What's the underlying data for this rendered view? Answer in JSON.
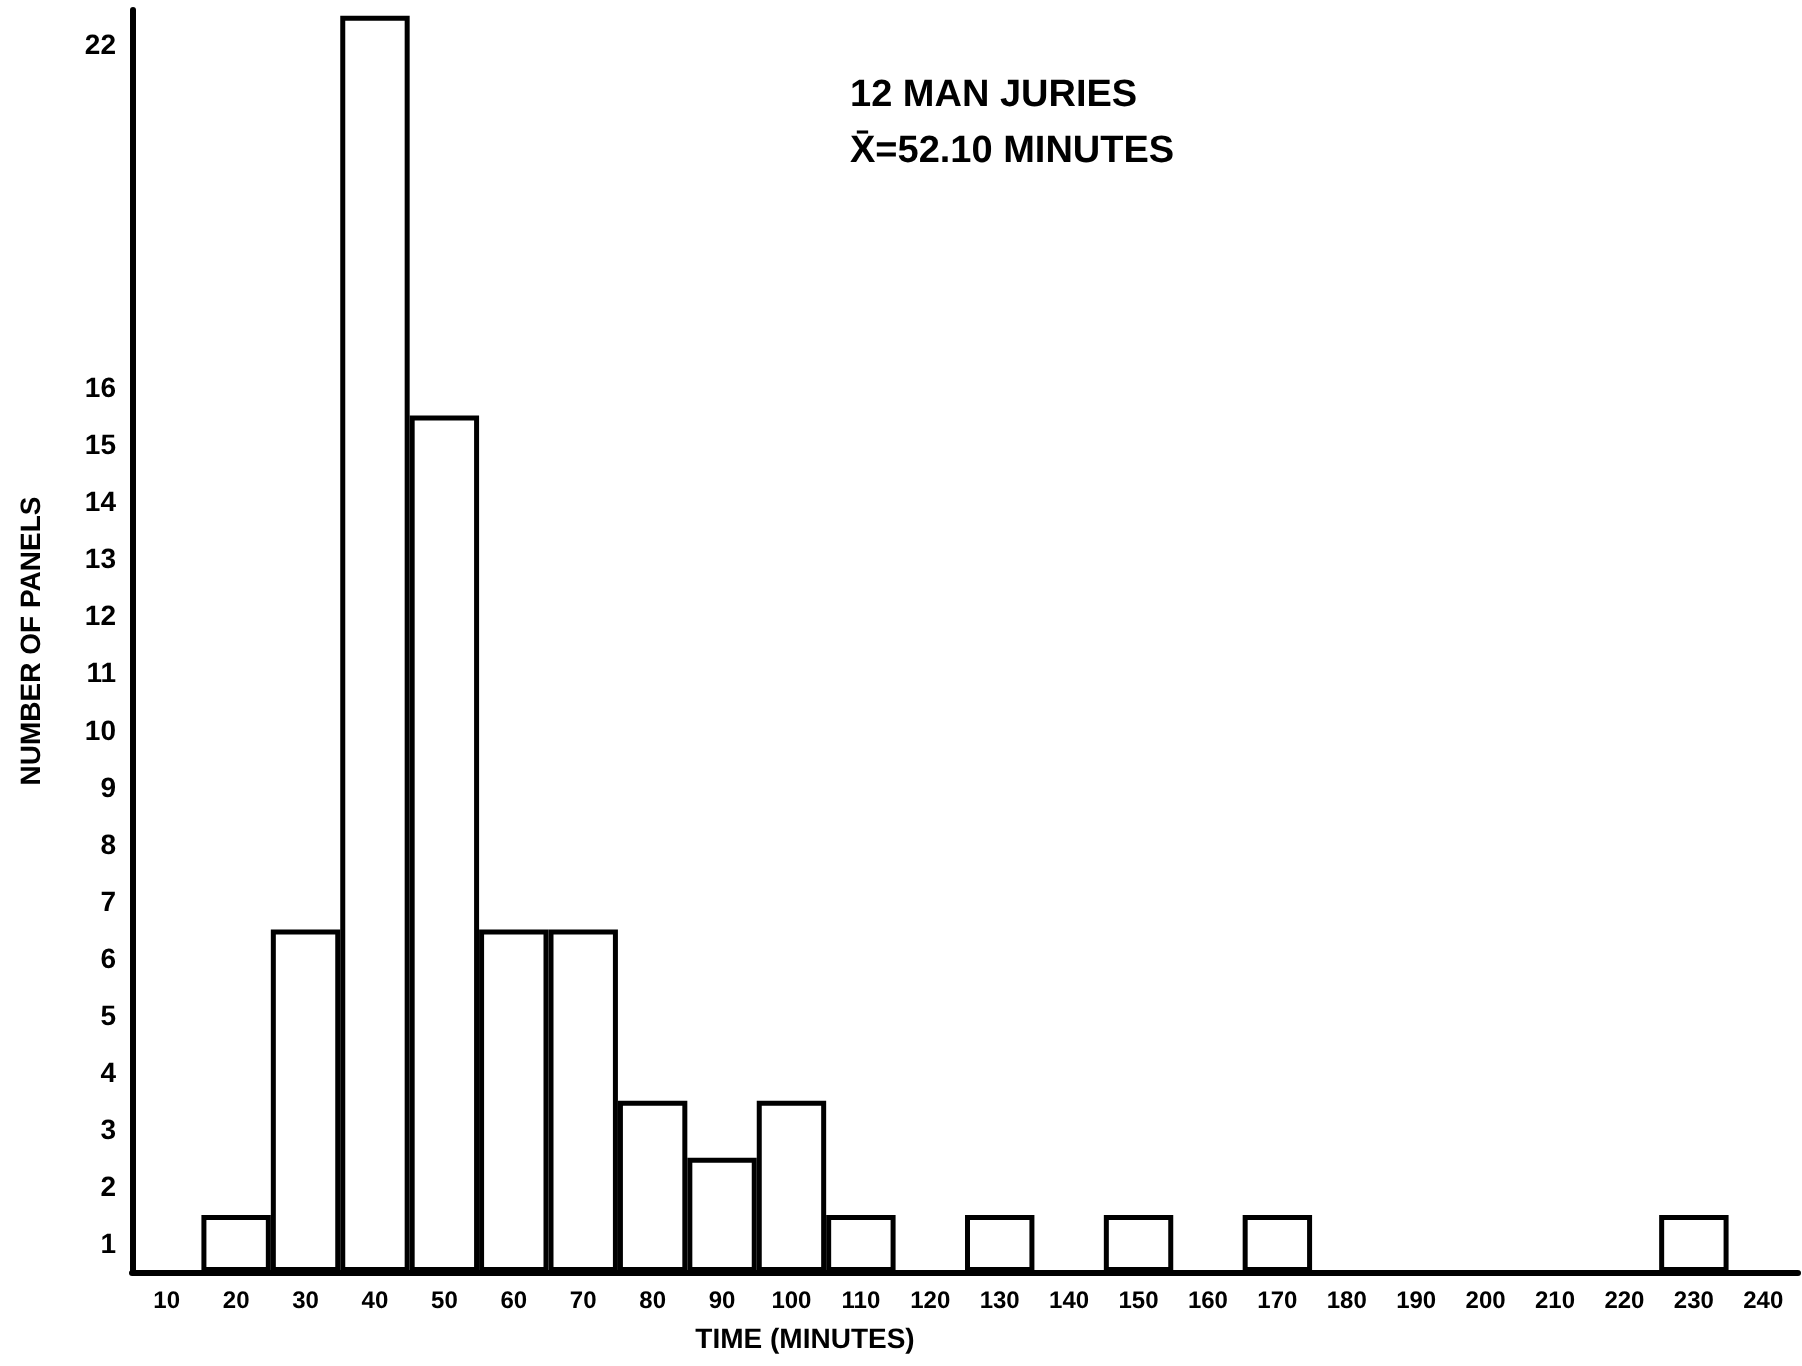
{
  "chart_data": {
    "type": "bar",
    "xlabel": "TIME (MINUTES)",
    "ylabel": "NUMBER OF PANELS",
    "annotations": [
      "12 MAN JURIES",
      "X̄=52.10 MINUTES"
    ],
    "categories": [
      "10",
      "20",
      "30",
      "40",
      "50",
      "60",
      "70",
      "80",
      "90",
      "100",
      "110",
      "120",
      "130",
      "140",
      "150",
      "160",
      "170",
      "180",
      "190",
      "200",
      "210",
      "220",
      "230",
      "240"
    ],
    "values": [
      0,
      1,
      6,
      22,
      15,
      6,
      6,
      3,
      2,
      3,
      1,
      0,
      1,
      0,
      1,
      0,
      1,
      0,
      0,
      0,
      0,
      0,
      1,
      0
    ],
    "color": "#ffffff",
    "ylim": [
      0,
      22.1
    ],
    "yticks": [
      {
        "value": 0.5,
        "label": "1"
      },
      {
        "value": 1.5,
        "label": "2"
      },
      {
        "value": 2.5,
        "label": "3"
      },
      {
        "value": 3.5,
        "label": "4"
      },
      {
        "value": 4.5,
        "label": "5"
      },
      {
        "value": 5.5,
        "label": "6"
      },
      {
        "value": 6.5,
        "label": "7"
      },
      {
        "value": 7.5,
        "label": "8"
      },
      {
        "value": 8.5,
        "label": "9"
      },
      {
        "value": 9.5,
        "label": "10"
      },
      {
        "value": 10.5,
        "label": "11"
      },
      {
        "value": 11.5,
        "label": "12"
      },
      {
        "value": 12.5,
        "label": "13"
      },
      {
        "value": 13.5,
        "label": "14"
      },
      {
        "value": 14.5,
        "label": "15"
      },
      {
        "value": 15.5,
        "label": "16"
      },
      {
        "value": 21.5,
        "label": "22"
      }
    ],
    "grid": false
  }
}
